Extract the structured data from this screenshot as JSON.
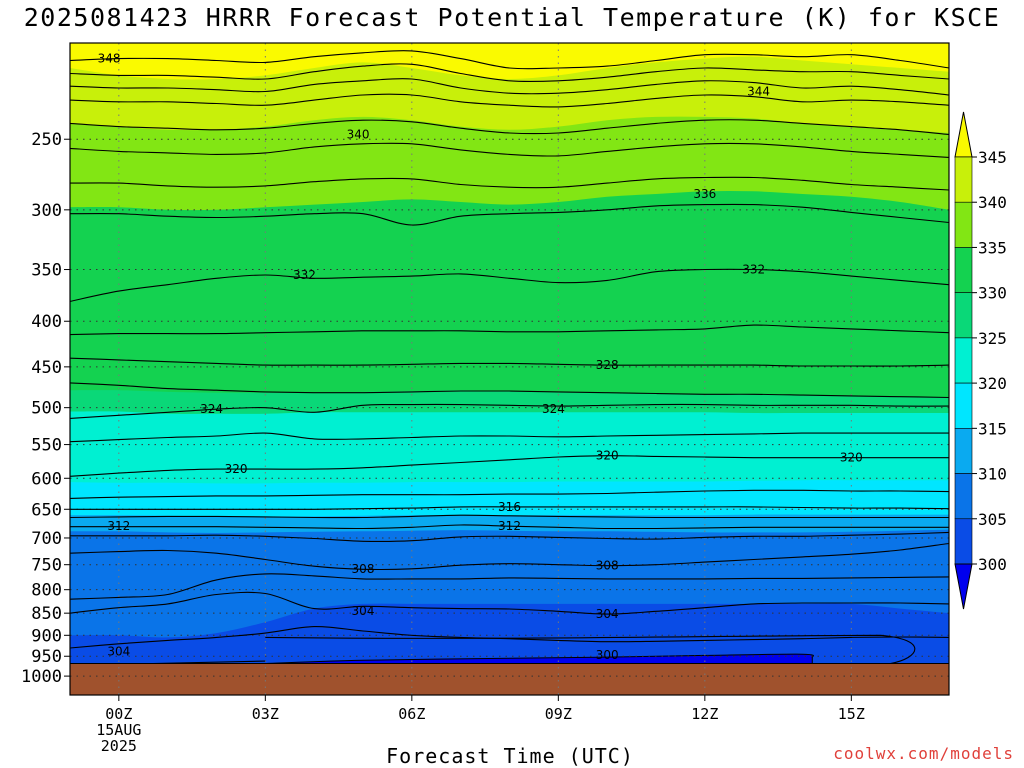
{
  "chart_data": {
    "type": "contour",
    "title": "2025081423 HRRR Forecast Potential Temperature (K) for KSCE",
    "xlabel": "Forecast Time (UTC)",
    "ylabel": "",
    "credit": "coolwx.com/models",
    "x_axis": {
      "range_hours": [
        -1,
        17
      ],
      "ticks": [
        {
          "hour": 0,
          "lines": [
            "00Z",
            "15AUG",
            "2025"
          ]
        },
        {
          "hour": 3,
          "lines": [
            "03Z"
          ]
        },
        {
          "hour": 6,
          "lines": [
            "06Z"
          ]
        },
        {
          "hour": 9,
          "lines": [
            "09Z"
          ]
        },
        {
          "hour": 12,
          "lines": [
            "12Z"
          ]
        },
        {
          "hour": 15,
          "lines": [
            "15Z"
          ]
        }
      ]
    },
    "y_axis": {
      "variable": "pressure (hPa)",
      "scale": "log",
      "reversed": true,
      "range": [
        1050,
        195
      ],
      "ticks": [
        "250",
        "300",
        "350",
        "400",
        "450",
        "500",
        "550",
        "600",
        "650",
        "700",
        "750",
        "800",
        "850",
        "900",
        "950",
        "1000"
      ]
    },
    "grid": "dotted",
    "surface_pressure_hpa": 968,
    "colorbar": {
      "placement": "right",
      "levels": [
        "345",
        "340",
        "335",
        "330",
        "325",
        "320",
        "315",
        "310",
        "305",
        "300"
      ],
      "colors": {
        "below_300": "#0000ee",
        "300": "#0a4ce6",
        "305": "#0a74e8",
        "310": "#0aaaf0",
        "315": "#00e6ff",
        "320": "#00f0d2",
        "325": "#0ad878",
        "330": "#14d250",
        "335": "#82e614",
        "340": "#c8f00a",
        "345": "#fafa00",
        "ground": "#a0522d"
      }
    },
    "contour_interval_k": 2,
    "contour_labels": [
      {
        "value": "348",
        "x": -0.2,
        "p": 203
      },
      {
        "value": "344",
        "x": 13.1,
        "p": 221
      },
      {
        "value": "340",
        "x": 4.9,
        "p": 247
      },
      {
        "value": "336",
        "x": 12.0,
        "p": 288
      },
      {
        "value": "332",
        "x": 3.8,
        "p": 355
      },
      {
        "value": "332",
        "x": 13.0,
        "p": 350
      },
      {
        "value": "328",
        "x": 10.0,
        "p": 448
      },
      {
        "value": "324",
        "x": 1.9,
        "p": 502
      },
      {
        "value": "324",
        "x": 8.9,
        "p": 502
      },
      {
        "value": "320",
        "x": 2.4,
        "p": 586
      },
      {
        "value": "320",
        "x": 10.0,
        "p": 566
      },
      {
        "value": "320",
        "x": 15.0,
        "p": 569
      },
      {
        "value": "316",
        "x": 8.0,
        "p": 646
      },
      {
        "value": "312",
        "x": 0.0,
        "p": 679
      },
      {
        "value": "312",
        "x": 8.0,
        "p": 679
      },
      {
        "value": "308",
        "x": 5.0,
        "p": 758
      },
      {
        "value": "308",
        "x": 10.0,
        "p": 752
      },
      {
        "value": "304",
        "x": 5.0,
        "p": 845
      },
      {
        "value": "304",
        "x": 10.0,
        "p": 852
      },
      {
        "value": "304",
        "x": 0.0,
        "p": 938
      },
      {
        "value": "300",
        "x": 10.0,
        "p": 947
      }
    ],
    "fill_bands": [
      {
        "value": 345,
        "bottom": [
          208,
          212,
          214,
          214,
          212,
          208,
          205,
          208,
          212,
          214,
          212,
          208,
          205,
          203,
          202,
          204,
          206,
          208,
          210
        ]
      },
      {
        "value": 340,
        "bottom": [
          240,
          242,
          244,
          244,
          242,
          238,
          236,
          238,
          242,
          244,
          242,
          238,
          236,
          236,
          237,
          240,
          242,
          244,
          246
        ]
      },
      {
        "value": 335,
        "bottom": [
          298,
          298,
          300,
          300,
          298,
          296,
          294,
          292,
          294,
          296,
          294,
          290,
          288,
          286,
          286,
          288,
          290,
          294,
          300
        ]
      },
      {
        "value": 330,
        "bottom": [
          478,
          478,
          480,
          481,
          481,
          481,
          480,
          479,
          478,
          479,
          480,
          481,
          482,
          483,
          483,
          484,
          485,
          486,
          487
        ]
      },
      {
        "value": 325,
        "bottom": [
          505,
          505,
          508,
          508,
          508,
          506,
          506,
          506,
          506,
          506,
          506,
          506,
          506,
          506,
          507,
          507,
          507,
          507,
          507
        ]
      },
      {
        "value": 320,
        "bottom": [
          606,
          607,
          607,
          608,
          608,
          607,
          607,
          606,
          606,
          606,
          605,
          605,
          605,
          605,
          604,
          603,
          603,
          603,
          603
        ]
      },
      {
        "value": 315,
        "bottom": [
          660,
          660,
          661,
          662,
          662,
          662,
          661,
          660,
          660,
          660,
          660,
          660,
          660,
          660,
          659,
          659,
          659,
          659,
          659
        ]
      },
      {
        "value": 310,
        "bottom": [
          688,
          688,
          690,
          691,
          690,
          689,
          688,
          687,
          686,
          687,
          688,
          688,
          689,
          690,
          690,
          690,
          689,
          687,
          685
        ]
      },
      {
        "value": 305,
        "bottom": [
          900,
          900,
          905,
          895,
          870,
          840,
          830,
          830,
          830,
          830,
          830,
          830,
          830,
          830,
          830,
          830,
          830,
          840,
          850
        ]
      }
    ],
    "deep_low_region": {
      "value": "below_300",
      "x": [
        3.0,
        5.0,
        8.0,
        10.0,
        12.0,
        14.0,
        14.2
      ],
      "top": [
        968,
        960,
        955,
        952,
        948,
        945,
        953
      ]
    },
    "contours": [
      {
        "value": 348,
        "p": [
          204,
          203,
          203,
          204,
          205,
          202,
          200,
          199,
          203,
          208,
          208,
          207,
          204,
          201,
          201,
          202,
          201,
          204,
          208
        ]
      },
      {
        "value": 346,
        "p": [
          211,
          212,
          212,
          213,
          214,
          210,
          207,
          206,
          211,
          215,
          215,
          213,
          210,
          208,
          209,
          210,
          210,
          212,
          214
        ]
      },
      {
        "value": 344,
        "p": [
          218,
          219,
          219,
          220,
          221,
          217,
          215,
          214,
          219,
          222,
          222,
          220,
          217,
          215,
          216,
          219,
          218,
          220,
          223
        ]
      },
      {
        "value": 342,
        "p": [
          226,
          227,
          227,
          228,
          229,
          226,
          223,
          223,
          227,
          229,
          230,
          228,
          225,
          223,
          224,
          227,
          226,
          227,
          229
        ]
      },
      {
        "value": 340,
        "p": [
          240,
          242,
          243,
          244,
          243,
          240,
          238,
          239,
          243,
          246,
          246,
          243,
          240,
          238,
          238,
          240,
          242,
          244,
          247
        ]
      },
      {
        "value": 338,
        "p": [
          256,
          258,
          259,
          260,
          259,
          255,
          253,
          253,
          257,
          260,
          261,
          258,
          255,
          253,
          253,
          255,
          258,
          260,
          262
        ]
      },
      {
        "value": 336,
        "p": [
          280,
          280,
          282,
          283,
          282,
          279,
          277,
          277,
          281,
          283,
          283,
          280,
          277,
          276,
          276,
          278,
          281,
          283,
          285
        ]
      },
      {
        "value": 334,
        "p": [
          303,
          303,
          305,
          306,
          305,
          303,
          303,
          312,
          305,
          303,
          302,
          300,
          297,
          296,
          296,
          298,
          302,
          306,
          310
        ]
      },
      {
        "value": 332,
        "p": [
          380,
          370,
          364,
          358,
          355,
          358,
          357,
          356,
          354,
          358,
          362,
          360,
          352,
          350,
          350,
          352,
          356,
          360,
          364
        ]
      },
      {
        "value": 330,
        "p": [
          414,
          413,
          413,
          413,
          412,
          411,
          410,
          410,
          410,
          411,
          411,
          410,
          409,
          408,
          404,
          406,
          408,
          410,
          412
        ]
      },
      {
        "value": 328,
        "p": [
          440,
          442,
          444,
          446,
          448,
          448,
          448,
          447,
          446,
          446,
          447,
          448,
          448,
          448,
          448,
          449,
          449,
          449,
          448
        ]
      },
      {
        "value": 326,
        "p": [
          469,
          472,
          476,
          478,
          480,
          481,
          481,
          480,
          479,
          479,
          480,
          481,
          482,
          483,
          483,
          484,
          485,
          486,
          487
        ]
      },
      {
        "value": 324,
        "p": [
          514,
          510,
          506,
          502,
          500,
          506,
          497,
          496,
          496,
          497,
          498,
          497,
          496,
          496,
          497,
          497,
          497,
          498,
          498
        ]
      },
      {
        "value": 322,
        "p": [
          546,
          543,
          540,
          538,
          534,
          542,
          542,
          540,
          538,
          538,
          539,
          538,
          537,
          536,
          535,
          534,
          534,
          534,
          534
        ]
      },
      {
        "value": 320,
        "p": [
          597,
          592,
          588,
          586,
          586,
          586,
          584,
          580,
          576,
          572,
          568,
          566,
          567,
          568,
          569,
          569,
          569,
          569,
          569
        ]
      },
      {
        "value": 318,
        "p": [
          632,
          630,
          629,
          628,
          628,
          627,
          626,
          626,
          626,
          625,
          625,
          624,
          622,
          620,
          619,
          619,
          620,
          620,
          621
        ]
      },
      {
        "value": 316,
        "p": [
          650,
          650,
          650,
          650,
          650,
          650,
          649,
          648,
          646,
          646,
          646,
          646,
          646,
          646,
          646,
          647,
          648,
          648,
          649
        ]
      },
      {
        "value": 314,
        "p": [
          664,
          663,
          662,
          662,
          663,
          664,
          664,
          662,
          660,
          661,
          662,
          663,
          664,
          664,
          664,
          664,
          664,
          664,
          664
        ]
      },
      {
        "value": 312,
        "p": [
          680,
          680,
          680,
          680,
          681,
          682,
          683,
          681,
          677,
          679,
          681,
          683,
          683,
          682,
          681,
          681,
          681,
          681,
          681
        ]
      },
      {
        "value": 310,
        "p": [
          696,
          696,
          696,
          695,
          697,
          701,
          706,
          705,
          698,
          697,
          699,
          701,
          702,
          699,
          697,
          697,
          695,
          693,
          690
        ]
      },
      {
        "value": 308,
        "p": [
          728,
          725,
          723,
          728,
          740,
          753,
          759,
          758,
          751,
          748,
          750,
          752,
          750,
          745,
          740,
          735,
          730,
          722,
          710
        ]
      },
      {
        "value": 306,
        "p": [
          820,
          816,
          810,
          780,
          768,
          772,
          778,
          778,
          778,
          776,
          777,
          778,
          778,
          778,
          777,
          777,
          776,
          775,
          774
        ]
      },
      {
        "value": 304,
        "p": [
          850,
          838,
          830,
          810,
          808,
          840,
          835,
          838,
          840,
          841,
          846,
          852,
          846,
          838,
          830,
          828,
          828,
          828,
          830
        ]
      },
      {
        "value": 302,
        "p": [
          930,
          920,
          912,
          905,
          895,
          880,
          890,
          900,
          905,
          908,
          912,
          915,
          914,
          912,
          910,
          908,
          905,
          904,
          905
        ]
      }
    ]
  }
}
